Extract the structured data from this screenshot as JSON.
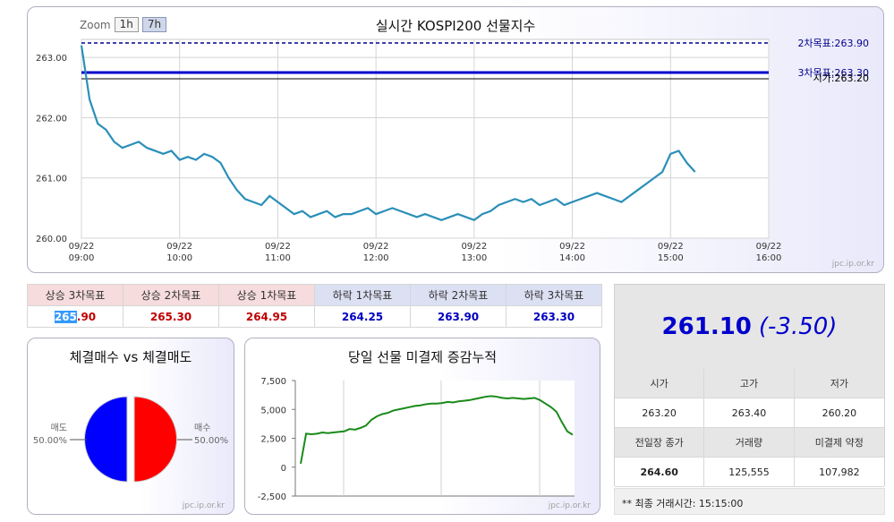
{
  "main_chart": {
    "title": "실시간 KOSPI200 선물지수",
    "zoom_label": "Zoom",
    "zoom_options": [
      "1h",
      "7h"
    ],
    "zoom_active": "7h",
    "credit": "jpc.ip.or.kr",
    "chart_data": {
      "type": "line",
      "ylim": [
        260.0,
        263.3
      ],
      "yticks": [
        "263.00",
        "262.00",
        "261.00",
        "260.00"
      ],
      "xlim": [
        "09:00",
        "16:00"
      ],
      "xticks": [
        {
          "date": "09/22",
          "time": "09:00"
        },
        {
          "date": "09/22",
          "time": "10:00"
        },
        {
          "date": "09/22",
          "time": "11:00"
        },
        {
          "date": "09/22",
          "time": "12:00"
        },
        {
          "date": "09/22",
          "time": "13:00"
        },
        {
          "date": "09/22",
          "time": "14:00"
        },
        {
          "date": "09/22",
          "time": "15:00"
        },
        {
          "date": "09/22",
          "time": "16:00"
        }
      ],
      "x": [
        "09:00",
        "09:05",
        "09:10",
        "09:15",
        "09:20",
        "09:25",
        "09:30",
        "09:35",
        "09:40",
        "09:45",
        "09:50",
        "09:55",
        "10:00",
        "10:05",
        "10:10",
        "10:15",
        "10:20",
        "10:25",
        "10:30",
        "10:35",
        "10:40",
        "10:45",
        "10:50",
        "10:55",
        "11:00",
        "11:05",
        "11:10",
        "11:15",
        "11:20",
        "11:25",
        "11:30",
        "11:35",
        "11:40",
        "11:45",
        "11:50",
        "11:55",
        "12:00",
        "12:05",
        "12:10",
        "12:15",
        "12:20",
        "12:25",
        "12:30",
        "12:35",
        "12:40",
        "12:45",
        "12:50",
        "12:55",
        "13:00",
        "13:05",
        "13:10",
        "13:15",
        "13:20",
        "13:25",
        "13:30",
        "13:35",
        "13:40",
        "13:45",
        "13:50",
        "13:55",
        "14:00",
        "14:05",
        "14:10",
        "14:15",
        "14:20",
        "14:25",
        "14:30",
        "14:35",
        "14:40",
        "14:45",
        "14:50",
        "14:55",
        "15:00",
        "15:05",
        "15:10",
        "15:15"
      ],
      "values": [
        263.2,
        262.3,
        261.9,
        261.8,
        261.6,
        261.5,
        261.55,
        261.6,
        261.5,
        261.45,
        261.4,
        261.45,
        261.3,
        261.35,
        261.3,
        261.4,
        261.35,
        261.25,
        261.0,
        260.8,
        260.65,
        260.6,
        260.55,
        260.7,
        260.6,
        260.5,
        260.4,
        260.45,
        260.35,
        260.4,
        260.45,
        260.35,
        260.4,
        260.4,
        260.45,
        260.5,
        260.4,
        260.45,
        260.5,
        260.45,
        260.4,
        260.35,
        260.4,
        260.35,
        260.3,
        260.35,
        260.4,
        260.35,
        260.3,
        260.4,
        260.45,
        260.55,
        260.6,
        260.65,
        260.6,
        260.65,
        260.55,
        260.6,
        260.65,
        260.55,
        260.6,
        260.65,
        260.7,
        260.75,
        260.7,
        260.65,
        260.6,
        260.7,
        260.8,
        260.9,
        261.0,
        261.1,
        261.4,
        261.45,
        261.25,
        261.1
      ],
      "reference_lines": [
        {
          "label": "2차목표:263.90",
          "value": 263.9,
          "style": "dashed",
          "color": "#00008b"
        },
        {
          "label": "3차목표:263.30",
          "value": 263.3,
          "style": "solid",
          "color": "#0000cc"
        },
        {
          "label": "시가:263.20",
          "value": 263.2,
          "style": "thin",
          "color": "#000000"
        }
      ]
    }
  },
  "targets": {
    "headers": [
      "상승 3차목표",
      "상승 2차목표",
      "상승 1차목표",
      "하락 1차목표",
      "하락 2차목표",
      "하락 3차목표"
    ],
    "values": [
      "265.90",
      "265.30",
      "264.95",
      "264.25",
      "263.90",
      "263.30"
    ],
    "first_value_parts": [
      "265",
      ".90"
    ]
  },
  "pie": {
    "title": "체결매수 vs 체결매도",
    "left_label": "매도",
    "left_value": "50.00%",
    "right_label": "매수",
    "right_value": "50.00%",
    "credit": "jpc.ip.or.kr",
    "chart_data": {
      "type": "pie",
      "slices": [
        {
          "name": "매도",
          "value": 50.0,
          "color": "#0000ff"
        },
        {
          "name": "매수",
          "value": 50.0,
          "color": "#ff0000"
        }
      ]
    }
  },
  "open_interest": {
    "title": "당일 선물 미결제 증감누적",
    "credit": "jpc.ip.or.kr",
    "chart_data": {
      "type": "line",
      "ylim": [
        -2500,
        7500
      ],
      "yticks": [
        "7,500",
        "5,000",
        "2,500",
        "0",
        "-2,500"
      ],
      "values": [
        300,
        2900,
        2850,
        2900,
        3000,
        2950,
        3000,
        3050,
        3100,
        3300,
        3250,
        3400,
        3600,
        4100,
        4400,
        4600,
        4700,
        4900,
        5000,
        5100,
        5200,
        5300,
        5350,
        5450,
        5500,
        5500,
        5550,
        5650,
        5600,
        5700,
        5750,
        5800,
        5900,
        6000,
        6100,
        6150,
        6100,
        6000,
        5950,
        6000,
        5950,
        5900,
        5950,
        6000,
        5800,
        5500,
        5200,
        4800,
        3900,
        3100,
        2800
      ]
    }
  },
  "price": {
    "current": "261.10",
    "change": "(-3.50)",
    "headers_row1": [
      "시가",
      "고가",
      "저가"
    ],
    "values_row1": [
      "263.20",
      "263.40",
      "260.20"
    ],
    "headers_row2": [
      "전일장 종가",
      "거래량",
      "미결제 약정"
    ],
    "values_row2": [
      "264.60",
      "125,555",
      "107,982"
    ],
    "last_trade": "** 최종 거래시간: 15:15:00"
  }
}
